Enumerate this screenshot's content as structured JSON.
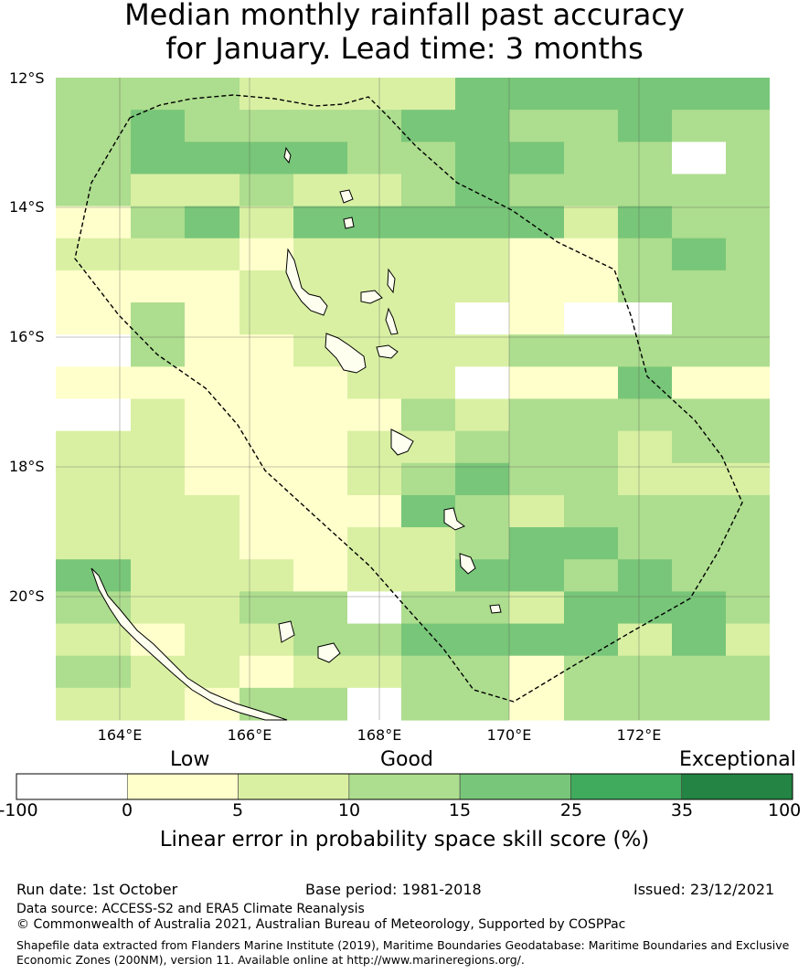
{
  "title": {
    "line1": "Median monthly rainfall past accuracy",
    "line2": "for January. Lead time: 3 months"
  },
  "map": {
    "lat_labels": [
      "12°S",
      "14°S",
      "16°S",
      "18°S",
      "20°S"
    ],
    "lon_labels": [
      "164°E",
      "166°E",
      "168°E",
      "170°E",
      "172°E"
    ],
    "grid_rows": [
      "3332222444444",
      "3433334433433",
      "3444433443303",
      "3223223433333",
      "1342444442433",
      "2221222211343",
      "1112222211333",
      "1312222010033",
      "0311222233333",
      "1111122011411",
      "0211113233333",
      "2211122333233",
      "2211123433222",
      "2221114323333",
      "2221122344333",
      "4222122443433",
      "3223303324443",
      "2122334444242",
      "3221223313333",
      "2213303313333"
    ],
    "class_colors": [
      "#ffffff",
      "#ffffcc",
      "#d9f0a3",
      "#addd8e",
      "#78c679"
    ]
  },
  "legend": {
    "categories": [
      "Low",
      "Good",
      "Exceptional"
    ],
    "tick_labels": [
      "-100",
      "0",
      "5",
      "10",
      "15",
      "25",
      "35",
      "100"
    ],
    "colors": [
      "#ffffff",
      "#ffffcc",
      "#d9f0a3",
      "#addd8e",
      "#78c679",
      "#41ab5d",
      "#238443"
    ],
    "title": "Linear error in probability space skill score (%)"
  },
  "footer": {
    "run_date": "Run date: 1st October",
    "base_period": "Base period: 1981-2018",
    "issued": "Issued: 23/12/2021",
    "data_source": "Data source: ACCESS-S2 and ERA5 Climate Reanalysis",
    "copyright": "© Commonwealth of Australia 2021, Australian Bureau of Meteorology, Supported by COSPPac",
    "shapefile": "Shapefile data extracted from Flanders Marine Institute (2019), Maritime Boundaries Geodatabase: Maritime Boundaries and Exclusive Economic Zones (200NM), version 11. Available online at http://www.marineregions.org/."
  }
}
